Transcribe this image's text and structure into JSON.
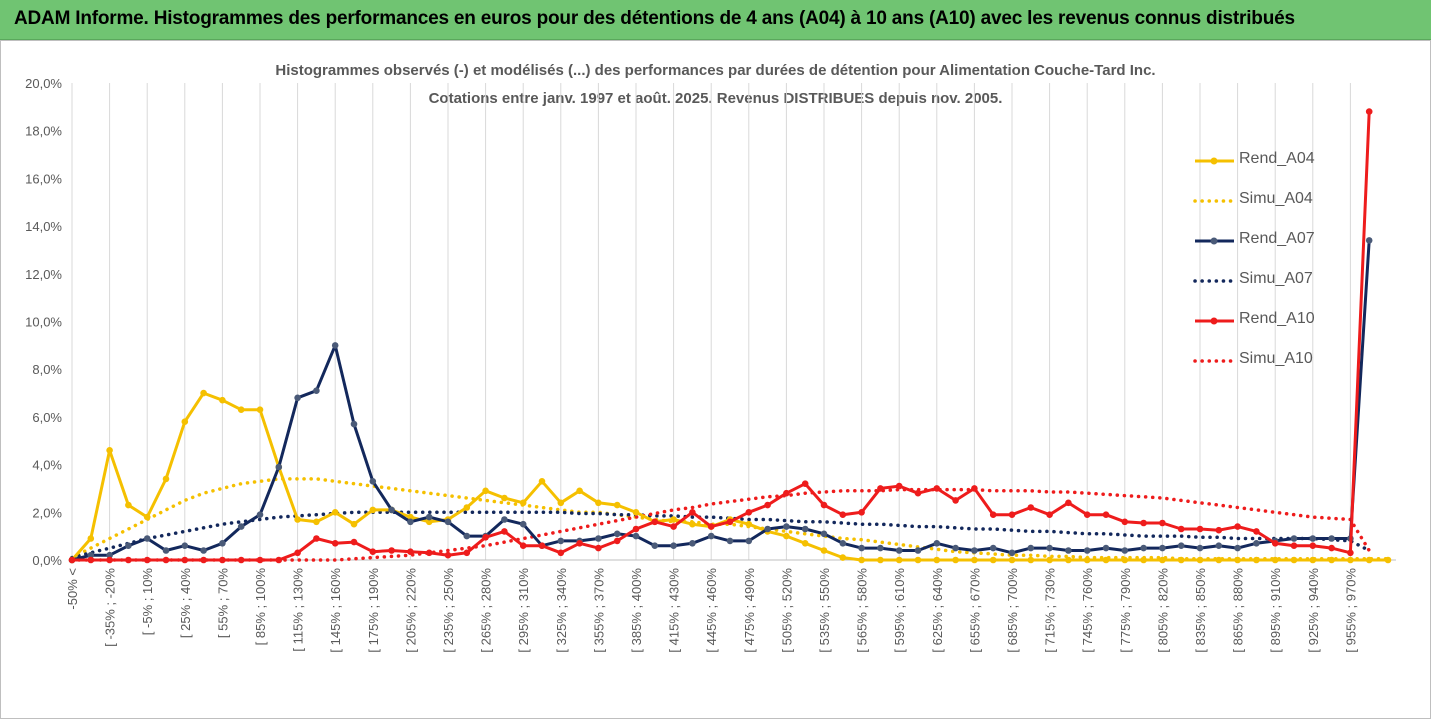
{
  "header": {
    "title": "ADAM Informe. Histogrammes des performances en euros pour des détentions de 4 ans (A04) à 10 ans (A10) avec les revenus connus distribués"
  },
  "chart_data": {
    "type": "line",
    "title": "Histogrammes observés (-) et modélisés (...) des performances par durées de détention pour Alimentation Couche-Tard Inc.",
    "subtitle": "Cotations entre janv. 1997 et août. 2025. Revenus DISTRIBUES depuis nov. 2005.",
    "ylim": [
      0,
      20
    ],
    "yticks": [
      "0,0%",
      "2,0%",
      "4,0%",
      "6,0%",
      "8,0%",
      "10,0%",
      "12,0%",
      "14,0%",
      "16,0%",
      "18,0%",
      "20,0%"
    ],
    "xlabels": [
      "-50% <",
      "[ -35% ; -20%",
      "[ -5% ; 10%",
      "[ 25% ; 40%",
      "[ 55% ; 70%",
      "[ 85% ; 100%",
      "[ 115% ; 130%",
      "[ 145% ; 160%",
      "[ 175% ; 190%",
      "[ 205% ; 220%",
      "[ 235% ; 250%",
      "[ 265% ; 280%",
      "[ 295% ; 310%",
      "[ 325% ; 340%",
      "[ 355% ; 370%",
      "[ 385% ; 400%",
      "[ 415% ; 430%",
      "[ 445% ; 460%",
      "[ 475% ; 490%",
      "[ 505% ; 520%",
      "[ 535% ; 550%",
      "[ 565% ; 580%",
      "[ 595% ; 610%",
      "[ 625% ; 640%",
      "[ 655% ; 670%",
      "[ 685% ; 700%",
      "[ 715% ; 730%",
      "[ 745% ; 760%",
      "[ 775% ; 790%",
      "[ 805% ; 820%",
      "[ 835% ; 850%",
      "[ 865% ; 880%",
      "[ 895% ; 910%",
      "[ 925% ; 940%",
      "[ 955% ; 970%"
    ],
    "legend_position": "right",
    "grid": "vertical",
    "series": [
      {
        "name": "Rend_A04",
        "style": "solid",
        "color": "#f5c000",
        "values": [
          0,
          0.9,
          4.6,
          2.3,
          1.8,
          3.4,
          5.8,
          7.0,
          6.7,
          6.3,
          6.3,
          3.9,
          1.7,
          1.6,
          2.0,
          1.5,
          2.1,
          2.1,
          1.8,
          1.6,
          1.7,
          2.2,
          2.9,
          2.6,
          2.4,
          3.3,
          2.4,
          2.9,
          2.4,
          2.3,
          2.0,
          1.6,
          1.7,
          1.5,
          1.4,
          1.7,
          1.5,
          1.2,
          1.0,
          0.7,
          0.4,
          0.1,
          0,
          0,
          0,
          0,
          0,
          0,
          0,
          0,
          0,
          0,
          0,
          0,
          0,
          0,
          0,
          0,
          0,
          0,
          0,
          0,
          0,
          0,
          0,
          0,
          0,
          0,
          0,
          0,
          0
        ]
      },
      {
        "name": "Simu_A04",
        "style": "dotted",
        "color": "#f5c000",
        "values": [
          0.1,
          0.5,
          0.9,
          1.3,
          1.7,
          2.1,
          2.5,
          2.8,
          3.0,
          3.2,
          3.3,
          3.4,
          3.4,
          3.4,
          3.3,
          3.2,
          3.1,
          3.0,
          2.9,
          2.8,
          2.7,
          2.6,
          2.5,
          2.4,
          2.3,
          2.2,
          2.1,
          2.0,
          2.0,
          1.9,
          1.8,
          1.7,
          1.6,
          1.6,
          1.5,
          1.5,
          1.4,
          1.3,
          1.2,
          1.1,
          1.0,
          0.9,
          0.85,
          0.75,
          0.65,
          0.55,
          0.45,
          0.35,
          0.3,
          0.25,
          0.2,
          0.2,
          0.15,
          0.15,
          0.1,
          0.1,
          0.1,
          0.1,
          0.1,
          0.05,
          0.05,
          0.05,
          0.05,
          0.05,
          0.05,
          0.05,
          0.05,
          0.05,
          0.05,
          0.05,
          0.05
        ]
      },
      {
        "name": "Rend_A07",
        "style": "solid",
        "color": "#13285c",
        "values": [
          0,
          0.2,
          0.2,
          0.6,
          0.9,
          0.4,
          0.6,
          0.4,
          0.7,
          1.4,
          1.9,
          3.9,
          6.8,
          7.1,
          9.0,
          5.7,
          3.3,
          2.1,
          1.6,
          1.8,
          1.6,
          1.0,
          1.0,
          1.7,
          1.5,
          0.6,
          0.8,
          0.8,
          0.9,
          1.1,
          1.0,
          0.6,
          0.6,
          0.7,
          1.0,
          0.8,
          0.8,
          1.3,
          1.4,
          1.3,
          1.1,
          0.7,
          0.5,
          0.5,
          0.4,
          0.4,
          0.7,
          0.5,
          0.4,
          0.5,
          0.3,
          0.5,
          0.5,
          0.4,
          0.4,
          0.5,
          0.4,
          0.5,
          0.5,
          0.6,
          0.5,
          0.6,
          0.5,
          0.7,
          0.8,
          0.9,
          0.9,
          0.9,
          0.9,
          13.4
        ]
      },
      {
        "name": "Simu_A07",
        "style": "dotted",
        "color": "#13285c",
        "values": [
          0.1,
          0.3,
          0.5,
          0.7,
          0.9,
          1.05,
          1.2,
          1.35,
          1.5,
          1.6,
          1.7,
          1.8,
          1.85,
          1.9,
          1.95,
          2.0,
          2.0,
          2.0,
          2.0,
          2.0,
          2.0,
          2.0,
          2.0,
          2.0,
          2.0,
          2.0,
          2.0,
          1.95,
          1.95,
          1.9,
          1.9,
          1.85,
          1.85,
          1.8,
          1.8,
          1.75,
          1.7,
          1.7,
          1.65,
          1.6,
          1.6,
          1.55,
          1.5,
          1.5,
          1.45,
          1.4,
          1.4,
          1.35,
          1.3,
          1.3,
          1.25,
          1.2,
          1.2,
          1.15,
          1.1,
          1.1,
          1.05,
          1.0,
          1.0,
          1.0,
          0.95,
          0.95,
          0.9,
          0.9,
          0.9,
          0.9,
          0.9,
          0.85,
          0.8,
          0.4
        ]
      },
      {
        "name": "Rend_A10",
        "style": "solid",
        "color": "#ee1c1c",
        "values": [
          0,
          0,
          0,
          0,
          0,
          0,
          0,
          0,
          0,
          0,
          0,
          0,
          0.3,
          0.9,
          0.7,
          0.75,
          0.35,
          0.4,
          0.35,
          0.3,
          0.2,
          0.3,
          0.95,
          1.2,
          0.6,
          0.6,
          0.3,
          0.7,
          0.5,
          0.8,
          1.3,
          1.6,
          1.4,
          2.0,
          1.4,
          1.6,
          2.0,
          2.3,
          2.8,
          3.2,
          2.3,
          1.9,
          2.0,
          3.0,
          3.1,
          2.8,
          3.0,
          2.5,
          3.0,
          1.9,
          1.9,
          2.2,
          1.9,
          2.4,
          1.9,
          1.9,
          1.6,
          1.55,
          1.55,
          1.3,
          1.3,
          1.25,
          1.4,
          1.2,
          0.7,
          0.6,
          0.6,
          0.5,
          0.3,
          18.8
        ]
      },
      {
        "name": "Simu_A10",
        "style": "dotted",
        "color": "#ee1c1c",
        "values": [
          0,
          0,
          0,
          0,
          0,
          0,
          0,
          0,
          0,
          0,
          0,
          0,
          0,
          0,
          0,
          0.05,
          0.1,
          0.15,
          0.2,
          0.3,
          0.4,
          0.5,
          0.6,
          0.75,
          0.9,
          1.05,
          1.2,
          1.35,
          1.5,
          1.65,
          1.8,
          1.95,
          2.1,
          2.2,
          2.35,
          2.45,
          2.55,
          2.65,
          2.7,
          2.8,
          2.85,
          2.9,
          2.9,
          2.9,
          2.95,
          2.95,
          2.95,
          2.95,
          2.95,
          2.9,
          2.9,
          2.9,
          2.85,
          2.85,
          2.8,
          2.75,
          2.7,
          2.65,
          2.6,
          2.5,
          2.4,
          2.3,
          2.2,
          2.1,
          2.0,
          1.9,
          1.8,
          1.75,
          1.7,
          0.4
        ]
      }
    ]
  }
}
